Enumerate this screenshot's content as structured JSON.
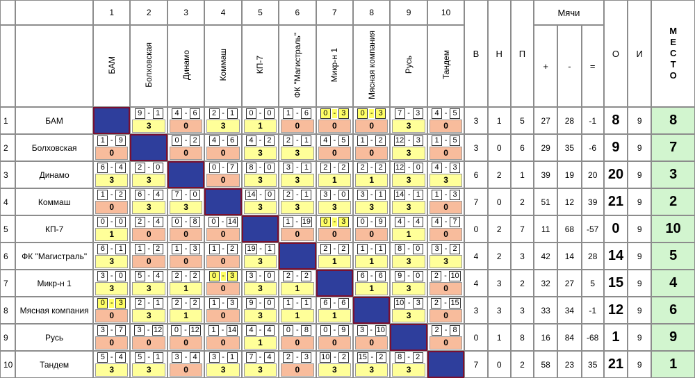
{
  "header": {
    "col_numbers": [
      "1",
      "2",
      "3",
      "4",
      "5",
      "6",
      "7",
      "8",
      "9",
      "10"
    ],
    "teams_vertical": [
      "БАМ",
      "Болховская",
      "Динамо",
      "Коммаш",
      "КП-7",
      "ФК \"Магистраль\"",
      "Микр-н 1",
      "Мясная компания",
      "Русь",
      "Тандем"
    ],
    "v": "В",
    "n": "Н",
    "p": "П",
    "balls": "Мячи",
    "plus": "+",
    "minus": "-",
    "eq": "=",
    "o": "О",
    "i": "И",
    "place": "М\nЕ\nС\nТ\nО"
  },
  "rows": [
    {
      "idx": "1",
      "team": "БАМ",
      "cells": [
        null,
        {
          "a": "9",
          "b": "1",
          "p": "3"
        },
        {
          "a": "4",
          "b": "6",
          "p": "0"
        },
        {
          "a": "2",
          "b": "1",
          "p": "3"
        },
        {
          "a": "0",
          "b": "0",
          "p": "1"
        },
        {
          "a": "1",
          "b": "6",
          "p": "0"
        },
        {
          "a": "0",
          "b": "3",
          "p": "0",
          "hl": true
        },
        {
          "a": "0",
          "b": "3",
          "p": "0",
          "hl": true
        },
        {
          "a": "7",
          "b": "3",
          "p": "3"
        },
        {
          "a": "4",
          "b": "5",
          "p": "0"
        }
      ],
      "v": "3",
      "n": "1",
      "p": "5",
      "plus": "27",
      "minus": "28",
      "eq": "-1",
      "o": "8",
      "i": "9",
      "place": "8"
    },
    {
      "idx": "2",
      "team": "Болховская",
      "cells": [
        {
          "a": "1",
          "b": "9",
          "p": "0"
        },
        null,
        {
          "a": "0",
          "b": "2",
          "p": "0"
        },
        {
          "a": "4",
          "b": "6",
          "p": "0"
        },
        {
          "a": "4",
          "b": "2",
          "p": "3"
        },
        {
          "a": "2",
          "b": "1",
          "p": "3"
        },
        {
          "a": "4",
          "b": "5",
          "p": "0"
        },
        {
          "a": "1",
          "b": "2",
          "p": "0"
        },
        {
          "a": "12",
          "b": "3",
          "p": "3"
        },
        {
          "a": "1",
          "b": "5",
          "p": "0"
        }
      ],
      "v": "3",
      "n": "0",
      "p": "6",
      "plus": "29",
      "minus": "35",
      "eq": "-6",
      "o": "9",
      "i": "9",
      "place": "7"
    },
    {
      "idx": "3",
      "team": "Динамо",
      "cells": [
        {
          "a": "6",
          "b": "4",
          "p": "3"
        },
        {
          "a": "2",
          "b": "0",
          "p": "3"
        },
        null,
        {
          "a": "0",
          "b": "7",
          "p": "0"
        },
        {
          "a": "8",
          "b": "0",
          "p": "3"
        },
        {
          "a": "3",
          "b": "1",
          "p": "3"
        },
        {
          "a": "2",
          "b": "2",
          "p": "1"
        },
        {
          "a": "2",
          "b": "2",
          "p": "1"
        },
        {
          "a": "12",
          "b": "0",
          "p": "3"
        },
        {
          "a": "4",
          "b": "3",
          "p": "3"
        }
      ],
      "v": "6",
      "n": "2",
      "p": "1",
      "plus": "39",
      "minus": "19",
      "eq": "20",
      "o": "20",
      "i": "9",
      "place": "3"
    },
    {
      "idx": "4",
      "team": "Коммаш",
      "cells": [
        {
          "a": "1",
          "b": "2",
          "p": "0"
        },
        {
          "a": "6",
          "b": "4",
          "p": "3"
        },
        {
          "a": "7",
          "b": "0",
          "p": "3"
        },
        null,
        {
          "a": "14",
          "b": "0",
          "p": "3"
        },
        {
          "a": "2",
          "b": "1",
          "p": "3"
        },
        {
          "a": "3",
          "b": "0",
          "p": "3"
        },
        {
          "a": "3",
          "b": "1",
          "p": "3"
        },
        {
          "a": "14",
          "b": "1",
          "p": "3"
        },
        {
          "a": "1",
          "b": "3",
          "p": "0"
        }
      ],
      "v": "7",
      "n": "0",
      "p": "2",
      "plus": "51",
      "minus": "12",
      "eq": "39",
      "o": "21",
      "i": "9",
      "place": "2"
    },
    {
      "idx": "5",
      "team": "КП-7",
      "cells": [
        {
          "a": "0",
          "b": "0",
          "p": "1"
        },
        {
          "a": "2",
          "b": "4",
          "p": "0"
        },
        {
          "a": "0",
          "b": "8",
          "p": "0"
        },
        {
          "a": "0",
          "b": "14",
          "p": "0"
        },
        null,
        {
          "a": "1",
          "b": "19",
          "p": "0"
        },
        {
          "a": "0",
          "b": "3",
          "p": "0",
          "hl": true
        },
        {
          "a": "0",
          "b": "9",
          "p": "0"
        },
        {
          "a": "4",
          "b": "4",
          "p": "1"
        },
        {
          "a": "4",
          "b": "7",
          "p": "0"
        }
      ],
      "v": "0",
      "n": "2",
      "p": "7",
      "plus": "11",
      "minus": "68",
      "eq": "-57",
      "o": "0",
      "i": "9",
      "place": "10"
    },
    {
      "idx": "6",
      "team": "ФК \"Магистраль\"",
      "cells": [
        {
          "a": "6",
          "b": "1",
          "p": "3"
        },
        {
          "a": "1",
          "b": "2",
          "p": "0"
        },
        {
          "a": "1",
          "b": "3",
          "p": "0"
        },
        {
          "a": "1",
          "b": "2",
          "p": "0"
        },
        {
          "a": "19",
          "b": "1",
          "p": "3"
        },
        null,
        {
          "a": "2",
          "b": "2",
          "p": "1"
        },
        {
          "a": "1",
          "b": "1",
          "p": "1"
        },
        {
          "a": "8",
          "b": "0",
          "p": "3"
        },
        {
          "a": "3",
          "b": "2",
          "p": "3"
        }
      ],
      "v": "4",
      "n": "2",
      "p": "3",
      "plus": "42",
      "minus": "14",
      "eq": "28",
      "o": "14",
      "i": "9",
      "place": "5"
    },
    {
      "idx": "7",
      "team": "Микр-н 1",
      "cells": [
        {
          "a": "3",
          "b": "0",
          "p": "3"
        },
        {
          "a": "5",
          "b": "4",
          "p": "3"
        },
        {
          "a": "2",
          "b": "2",
          "p": "1"
        },
        {
          "a": "0",
          "b": "3",
          "p": "0",
          "hl": true
        },
        {
          "a": "3",
          "b": "0",
          "p": "3"
        },
        {
          "a": "2",
          "b": "2",
          "p": "1"
        },
        null,
        {
          "a": "6",
          "b": "6",
          "p": "1"
        },
        {
          "a": "9",
          "b": "0",
          "p": "3"
        },
        {
          "a": "2",
          "b": "10",
          "p": "0"
        }
      ],
      "v": "4",
      "n": "3",
      "p": "2",
      "plus": "32",
      "minus": "27",
      "eq": "5",
      "o": "15",
      "i": "9",
      "place": "4"
    },
    {
      "idx": "8",
      "team": "Мясная компания",
      "cells": [
        {
          "a": "0",
          "b": "3",
          "p": "0",
          "hl": true
        },
        {
          "a": "2",
          "b": "1",
          "p": "3"
        },
        {
          "a": "2",
          "b": "2",
          "p": "1"
        },
        {
          "a": "1",
          "b": "3",
          "p": "0"
        },
        {
          "a": "9",
          "b": "0",
          "p": "3"
        },
        {
          "a": "1",
          "b": "1",
          "p": "1"
        },
        {
          "a": "6",
          "b": "6",
          "p": "1"
        },
        null,
        {
          "a": "10",
          "b": "3",
          "p": "3"
        },
        {
          "a": "2",
          "b": "15",
          "p": "0"
        }
      ],
      "v": "3",
      "n": "3",
      "p": "3",
      "plus": "33",
      "minus": "34",
      "eq": "-1",
      "o": "12",
      "i": "9",
      "place": "6"
    },
    {
      "idx": "9",
      "team": "Русь",
      "cells": [
        {
          "a": "3",
          "b": "7",
          "p": "0"
        },
        {
          "a": "3",
          "b": "12",
          "p": "0"
        },
        {
          "a": "0",
          "b": "12",
          "p": "0"
        },
        {
          "a": "1",
          "b": "14",
          "p": "0"
        },
        {
          "a": "4",
          "b": "4",
          "p": "1"
        },
        {
          "a": "0",
          "b": "8",
          "p": "0"
        },
        {
          "a": "0",
          "b": "9",
          "p": "0"
        },
        {
          "a": "3",
          "b": "10",
          "p": "0"
        },
        null,
        {
          "a": "2",
          "b": "8",
          "p": "0"
        }
      ],
      "v": "0",
      "n": "1",
      "p": "8",
      "plus": "16",
      "minus": "84",
      "eq": "-68",
      "o": "1",
      "i": "9",
      "place": "9"
    },
    {
      "idx": "10",
      "team": "Тандем",
      "cells": [
        {
          "a": "5",
          "b": "4",
          "p": "3"
        },
        {
          "a": "5",
          "b": "1",
          "p": "3"
        },
        {
          "a": "3",
          "b": "4",
          "p": "0"
        },
        {
          "a": "3",
          "b": "1",
          "p": "3"
        },
        {
          "a": "7",
          "b": "4",
          "p": "3"
        },
        {
          "a": "2",
          "b": "3",
          "p": "0"
        },
        {
          "a": "10",
          "b": "2",
          "p": "3"
        },
        {
          "a": "15",
          "b": "2",
          "p": "3"
        },
        {
          "a": "8",
          "b": "2",
          "p": "3"
        },
        null
      ],
      "v": "7",
      "n": "0",
      "p": "2",
      "plus": "58",
      "minus": "23",
      "eq": "35",
      "o": "21",
      "i": "9",
      "place": "1"
    }
  ],
  "colors": {
    "diag": "#2e3e9c",
    "pts_win": "#ffff99",
    "pts_loss": "#f8bc9c",
    "highlight": "#ffff66",
    "place_bg": "#d2f5cf"
  }
}
